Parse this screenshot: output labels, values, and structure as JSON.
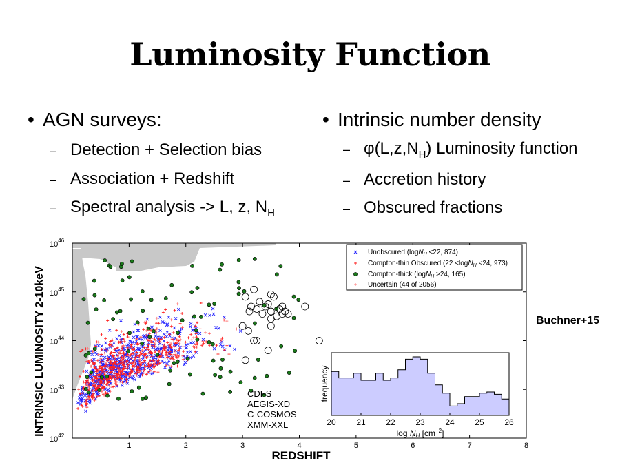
{
  "slide": {
    "title": "Luminosity Function",
    "left_bullet": "AGN surveys:",
    "left_sub": [
      {
        "text": "Detection + Selection bias",
        "sub": ""
      },
      {
        "text": "Association + Redshift",
        "sub": ""
      },
      {
        "text": "Spectral analysis -> L, z, N",
        "sub": "H"
      }
    ],
    "right_bullet": "Intrinsic number density",
    "right_sub": [
      {
        "text": "φ(L,z,N",
        "sub": "H",
        "after": ") Luminosity function"
      },
      {
        "text": "Accretion history",
        "sub": "",
        "after": ""
      },
      {
        "text": "Obscured fractions",
        "sub": "",
        "after": ""
      }
    ],
    "citation": "Buchner+15"
  },
  "chart_data": [
    {
      "type": "scatter",
      "xlabel": "REDSHIFT",
      "ylabel": "INTRINSIC LUMINOSITY 2-10keV",
      "xlim": [
        0,
        8
      ],
      "ylim": [
        42,
        46
      ],
      "ylog": true,
      "x_ticks": [
        "1",
        "2",
        "3",
        "4",
        "5",
        "6",
        "7",
        "8"
      ],
      "y_ticks": [
        {
          "base": "10",
          "exp": "42"
        },
        {
          "base": "10",
          "exp": "43"
        },
        {
          "base": "10",
          "exp": "44"
        },
        {
          "base": "10",
          "exp": "45"
        },
        {
          "base": "10",
          "exp": "46"
        }
      ],
      "legend_position": "top-right",
      "series": [
        {
          "name": "Unobscured",
          "cond": "(log",
          "nh": "N",
          "nhsub": "H",
          "rest": " <22, 874)",
          "color": "#1f1fff",
          "marker": "x",
          "count": 874
        },
        {
          "name": "Compton-thin Obscured",
          "cond": "(22 <log",
          "nh": "N",
          "nhsub": "H",
          "rest": " <24, 973)",
          "color": "#ff2020",
          "marker": "+",
          "count": 973
        },
        {
          "name": "Compton-thick",
          "cond": "(log",
          "nh": "N",
          "nhsub": "H",
          "rest": " >24, 165)",
          "color": "#1a7a1a",
          "marker": "o",
          "count": 165
        },
        {
          "name": "Uncertain",
          "cond": "(44 of 2056)",
          "nh": "",
          "nhsub": "",
          "rest": "",
          "color": "#ff8080",
          "marker": "+",
          "count": 44
        }
      ],
      "surveys": [
        "CDFS",
        "AEGIS-XD",
        "C-COSMOS",
        "XMM-XXL"
      ],
      "highlight_circles": [
        [
          3.05,
          44.9
        ],
        [
          3.12,
          44.6
        ],
        [
          3.15,
          44.7
        ],
        [
          3.2,
          45.05
        ],
        [
          3.25,
          44.65
        ],
        [
          3.3,
          44.8
        ],
        [
          3.35,
          44.55
        ],
        [
          3.4,
          44.7
        ],
        [
          3.45,
          44.75
        ],
        [
          3.5,
          44.6
        ],
        [
          3.55,
          44.9
        ],
        [
          3.5,
          44.45
        ],
        [
          3.6,
          44.5
        ],
        [
          3.65,
          44.65
        ],
        [
          3.7,
          44.7
        ],
        [
          3.75,
          44.6
        ],
        [
          3.1,
          44.2
        ],
        [
          3.25,
          44.0
        ],
        [
          3.5,
          44.3
        ],
        [
          3.7,
          44.55
        ],
        [
          3.8,
          44.55
        ],
        [
          4.1,
          44.7
        ],
        [
          4.35,
          44.0
        ],
        [
          3.05,
          43.6
        ],
        [
          3.45,
          43.8
        ],
        [
          3.0,
          44.3
        ],
        [
          3.2,
          44.0
        ],
        [
          3.5,
          44.95
        ]
      ]
    },
    {
      "type": "bar",
      "xlabel_prefix": "log ",
      "xlabel_var": "N",
      "xlabel_sub": "H",
      "xlabel_unit": "  [cm",
      "xlabel_exp": "−2",
      "xlabel_close": "]",
      "ylabel": "frequency",
      "xlim": [
        20,
        26
      ],
      "x_ticks": [
        "20",
        "21",
        "22",
        "23",
        "24",
        "25",
        "26"
      ],
      "bin_width": 0.25,
      "bins_start": 20,
      "values": [
        0.75,
        0.64,
        0.64,
        0.72,
        0.6,
        0.6,
        0.72,
        0.6,
        0.64,
        0.78,
        0.96,
        1.0,
        0.96,
        0.72,
        0.52,
        0.38,
        0.16,
        0.2,
        0.32,
        0.32,
        0.38,
        0.4,
        0.36,
        0.28
      ]
    }
  ]
}
